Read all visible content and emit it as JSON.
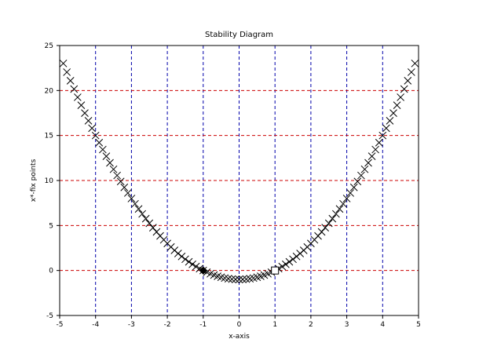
{
  "chart_data": {
    "type": "scatter",
    "title": "Stability Diagram",
    "xlabel": "x-axis",
    "ylabel": "x*-fix points",
    "xlim": [
      -5,
      5
    ],
    "ylim": [
      -5,
      25
    ],
    "xticks": [
      "-5",
      "-4",
      "-3",
      "-2",
      "-1",
      "0",
      "1",
      "2",
      "3",
      "4",
      "5"
    ],
    "yticks": [
      "-5",
      "0",
      "5",
      "10",
      "15",
      "20",
      "25"
    ],
    "xtick_values": [
      -5,
      -4,
      -3,
      -2,
      -1,
      0,
      1,
      2,
      3,
      4,
      5
    ],
    "ytick_values": [
      -5,
      0,
      5,
      10,
      15,
      20,
      25
    ],
    "grid": true,
    "grid_colors": {
      "vertical": "#0000aa",
      "horizontal": "#cc0000"
    },
    "marker_color": "#000000",
    "function": "x^2 - 1",
    "x_start": -4.9,
    "x_end": 4.9,
    "x_step": 0.1,
    "fixed_points": [
      {
        "x": -1,
        "y": 0,
        "marker": "filled-diamond",
        "stability": "stable"
      },
      {
        "x": 1,
        "y": 0,
        "marker": "open-square",
        "stability": "unstable"
      }
    ]
  }
}
